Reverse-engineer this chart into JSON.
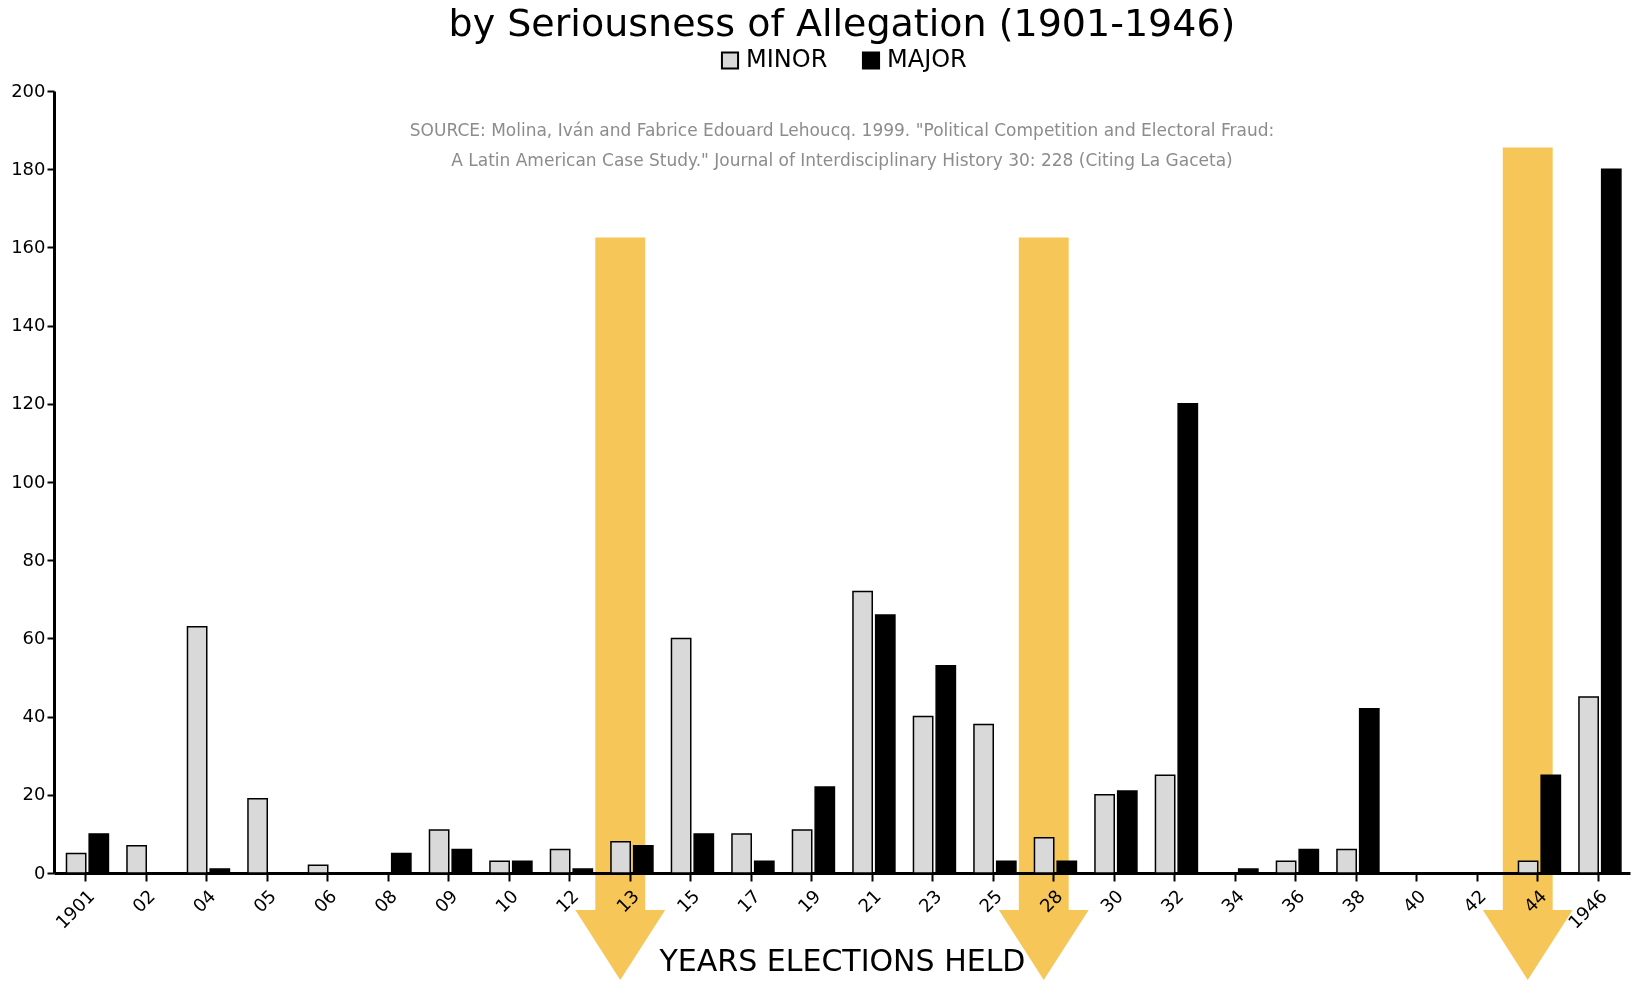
{
  "chart_data": {
    "type": "bar",
    "title": "by Seriousness of Allegation (1901-1946)",
    "categories": [
      "1901",
      "02",
      "04",
      "05",
      "06",
      "08",
      "09",
      "10",
      "12",
      "13",
      "15",
      "17",
      "19",
      "21",
      "23",
      "25",
      "28",
      "30",
      "32",
      "34",
      "36",
      "38",
      "40",
      "42",
      "44",
      "1946"
    ],
    "series": [
      {
        "name": "MINOR",
        "color": "#d9d9d9",
        "values": [
          5,
          7,
          63,
          19,
          2,
          null,
          11,
          3,
          6,
          8,
          60,
          10,
          11,
          72,
          40,
          38,
          9,
          20,
          25,
          null,
          3,
          6,
          null,
          null,
          3,
          45
        ]
      },
      {
        "name": "MAJOR",
        "color": "#000000",
        "values": [
          10,
          null,
          1,
          null,
          null,
          5,
          6,
          3,
          1,
          7,
          10,
          3,
          22,
          66,
          53,
          3,
          3,
          21,
          120,
          1,
          6,
          42,
          null,
          null,
          25,
          180
        ]
      }
    ],
    "xlabel": "YEARS ELECTIONS HELD",
    "ylim": [
      0,
      200
    ],
    "yticks": [
      0,
      20,
      40,
      60,
      80,
      100,
      120,
      140,
      160,
      180,
      200
    ],
    "grid": false,
    "legend": "top",
    "annotations": [
      "SOURCE: Molina, Iván and Fabrice Edouard Lehoucq. 1999. \"Political Competition and Electoral Fraud:",
      "A Latin American Case Study.\" Journal of Interdisciplinary History 30: 228 (Citing La Gaceta)"
    ]
  }
}
